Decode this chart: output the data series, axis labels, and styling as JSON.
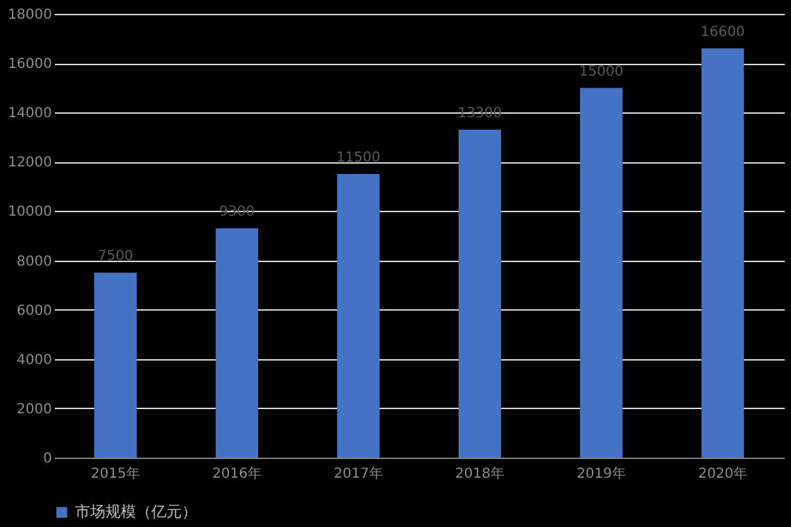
{
  "chart_data": {
    "type": "bar",
    "categories": [
      "2015年",
      "2016年",
      "2017年",
      "2018年",
      "2019年",
      "2020年"
    ],
    "series": [
      {
        "name": "市场规模（亿元）",
        "color": "#4472c4",
        "values": [
          7500,
          9300,
          11500,
          13300,
          15000,
          16600
        ]
      }
    ],
    "ylim": [
      0,
      18000
    ],
    "yticks": [
      0,
      2000,
      4000,
      6000,
      8000,
      10000,
      12000,
      14000,
      16000,
      18000
    ],
    "grid": "y",
    "legend": "bottom",
    "data_labels": true
  }
}
